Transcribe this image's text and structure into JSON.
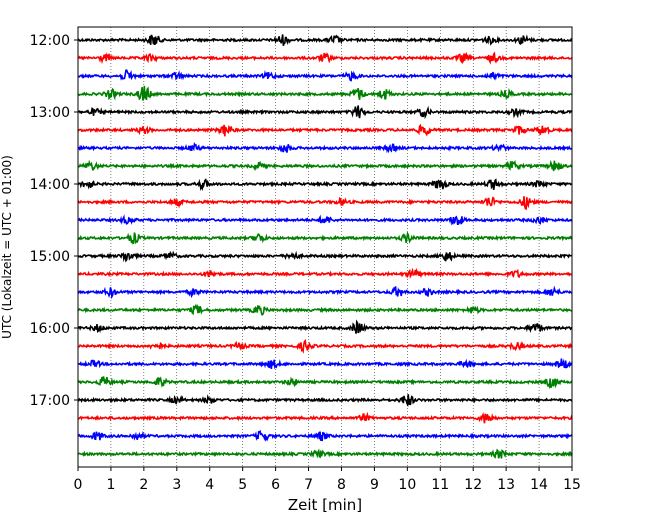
{
  "chart_data": {
    "type": "line",
    "title": "",
    "xlabel": "Zeit  [min]",
    "ylabel": "UTC (Lokalzeit = UTC + 01:00)",
    "xlim": [
      0,
      15
    ],
    "x_ticks": [
      "0",
      "1",
      "2",
      "3",
      "4",
      "5",
      "6",
      "7",
      "8",
      "9",
      "10",
      "11",
      "12",
      "13",
      "14",
      "15"
    ],
    "y_tick_labels": [
      "12:00",
      "13:00",
      "14:00",
      "15:00",
      "16:00",
      "17:00"
    ],
    "grid": "vertical dotted at each minute",
    "trace_interval_min": 15,
    "trace_count": 24,
    "trace_colors": [
      "#000000",
      "#ff0000",
      "#0000ff",
      "#008000"
    ],
    "series": [
      {
        "start": "12:00",
        "color": "#000000",
        "events": [
          {
            "t": 2.3,
            "a": 6
          },
          {
            "t": 6.2,
            "a": 5
          },
          {
            "t": 7.8,
            "a": 4
          },
          {
            "t": 12.5,
            "a": 3
          },
          {
            "t": 13.5,
            "a": 4
          }
        ]
      },
      {
        "start": "12:15",
        "color": "#ff0000",
        "events": [
          {
            "t": 0.8,
            "a": 3
          },
          {
            "t": 2.2,
            "a": 3
          },
          {
            "t": 7.5,
            "a": 4
          },
          {
            "t": 11.7,
            "a": 4
          },
          {
            "t": 12.6,
            "a": 4
          }
        ]
      },
      {
        "start": "12:30",
        "color": "#0000ff",
        "events": [
          {
            "t": 1.5,
            "a": 5
          },
          {
            "t": 3.0,
            "a": 3
          },
          {
            "t": 5.8,
            "a": 3
          },
          {
            "t": 8.3,
            "a": 4
          },
          {
            "t": 12.6,
            "a": 3
          }
        ]
      },
      {
        "start": "12:45",
        "color": "#008000",
        "events": [
          {
            "t": 1.0,
            "a": 4
          },
          {
            "t": 2.0,
            "a": 8
          },
          {
            "t": 8.5,
            "a": 6
          },
          {
            "t": 9.3,
            "a": 5
          },
          {
            "t": 13.0,
            "a": 3
          }
        ]
      },
      {
        "start": "13:00",
        "color": "#000000",
        "events": [
          {
            "t": 0.5,
            "a": 3
          },
          {
            "t": 8.5,
            "a": 6
          },
          {
            "t": 10.5,
            "a": 4
          },
          {
            "t": 13.3,
            "a": 3
          }
        ]
      },
      {
        "start": "13:15",
        "color": "#ff0000",
        "events": [
          {
            "t": 2.0,
            "a": 3
          },
          {
            "t": 4.5,
            "a": 6
          },
          {
            "t": 10.5,
            "a": 5
          },
          {
            "t": 13.4,
            "a": 4
          },
          {
            "t": 14.1,
            "a": 5
          }
        ]
      },
      {
        "start": "13:30",
        "color": "#0000ff",
        "events": [
          {
            "t": 3.5,
            "a": 3
          },
          {
            "t": 6.3,
            "a": 4
          },
          {
            "t": 9.5,
            "a": 3
          },
          {
            "t": 12.8,
            "a": 3
          }
        ]
      },
      {
        "start": "13:45",
        "color": "#008000",
        "events": [
          {
            "t": 0.4,
            "a": 4
          },
          {
            "t": 5.5,
            "a": 3
          },
          {
            "t": 13.2,
            "a": 4
          },
          {
            "t": 14.5,
            "a": 5
          }
        ]
      },
      {
        "start": "14:00",
        "color": "#000000",
        "events": [
          {
            "t": 0.3,
            "a": 4
          },
          {
            "t": 3.8,
            "a": 4
          },
          {
            "t": 11.0,
            "a": 6
          },
          {
            "t": 12.6,
            "a": 5
          },
          {
            "t": 14.0,
            "a": 3
          }
        ]
      },
      {
        "start": "14:15",
        "color": "#ff0000",
        "events": [
          {
            "t": 3.0,
            "a": 3
          },
          {
            "t": 8.0,
            "a": 3
          },
          {
            "t": 12.5,
            "a": 5
          },
          {
            "t": 13.6,
            "a": 6
          }
        ]
      },
      {
        "start": "14:30",
        "color": "#0000ff",
        "events": [
          {
            "t": 1.5,
            "a": 3
          },
          {
            "t": 7.5,
            "a": 4
          },
          {
            "t": 11.5,
            "a": 6
          },
          {
            "t": 14.0,
            "a": 3
          }
        ]
      },
      {
        "start": "14:45",
        "color": "#008000",
        "events": [
          {
            "t": 1.7,
            "a": 5
          },
          {
            "t": 5.5,
            "a": 4
          },
          {
            "t": 10.0,
            "a": 4
          }
        ]
      },
      {
        "start": "15:00",
        "color": "#000000",
        "events": [
          {
            "t": 1.5,
            "a": 5
          },
          {
            "t": 2.8,
            "a": 3
          },
          {
            "t": 6.5,
            "a": 3
          },
          {
            "t": 11.2,
            "a": 5
          }
        ]
      },
      {
        "start": "15:15",
        "color": "#ff0000",
        "events": [
          {
            "t": 4.0,
            "a": 3
          },
          {
            "t": 10.2,
            "a": 4
          },
          {
            "t": 13.3,
            "a": 3
          }
        ]
      },
      {
        "start": "15:30",
        "color": "#0000ff",
        "events": [
          {
            "t": 1.0,
            "a": 4
          },
          {
            "t": 3.5,
            "a": 3
          },
          {
            "t": 9.7,
            "a": 5
          },
          {
            "t": 10.6,
            "a": 3
          },
          {
            "t": 14.4,
            "a": 4
          }
        ]
      },
      {
        "start": "15:45",
        "color": "#008000",
        "events": [
          {
            "t": 3.6,
            "a": 4
          },
          {
            "t": 5.5,
            "a": 5
          },
          {
            "t": 12.0,
            "a": 3
          }
        ]
      },
      {
        "start": "16:00",
        "color": "#000000",
        "events": [
          {
            "t": 0.6,
            "a": 3
          },
          {
            "t": 8.5,
            "a": 6
          },
          {
            "t": 13.9,
            "a": 5
          }
        ]
      },
      {
        "start": "16:15",
        "color": "#ff0000",
        "events": [
          {
            "t": 2.4,
            "a": 3
          },
          {
            "t": 4.9,
            "a": 3
          },
          {
            "t": 6.9,
            "a": 5
          },
          {
            "t": 13.3,
            "a": 3
          }
        ]
      },
      {
        "start": "16:30",
        "color": "#0000ff",
        "events": [
          {
            "t": 0.5,
            "a": 3
          },
          {
            "t": 5.9,
            "a": 4
          },
          {
            "t": 11.8,
            "a": 3
          },
          {
            "t": 14.7,
            "a": 5
          }
        ]
      },
      {
        "start": "16:45",
        "color": "#008000",
        "events": [
          {
            "t": 0.8,
            "a": 5
          },
          {
            "t": 2.5,
            "a": 4
          },
          {
            "t": 6.5,
            "a": 3
          },
          {
            "t": 14.4,
            "a": 5
          }
        ]
      },
      {
        "start": "17:00",
        "color": "#000000",
        "events": [
          {
            "t": 3.0,
            "a": 3
          },
          {
            "t": 4.0,
            "a": 3
          },
          {
            "t": 10.0,
            "a": 6
          }
        ]
      },
      {
        "start": "17:15",
        "color": "#ff0000",
        "events": [
          {
            "t": 8.7,
            "a": 3
          },
          {
            "t": 12.4,
            "a": 5
          }
        ]
      },
      {
        "start": "17:30",
        "color": "#0000ff",
        "events": [
          {
            "t": 0.6,
            "a": 4
          },
          {
            "t": 1.8,
            "a": 3
          },
          {
            "t": 5.6,
            "a": 5
          },
          {
            "t": 7.4,
            "a": 4
          }
        ]
      },
      {
        "start": "17:45",
        "color": "#008000",
        "events": [
          {
            "t": 7.3,
            "a": 3
          },
          {
            "t": 12.8,
            "a": 4
          }
        ]
      }
    ]
  }
}
